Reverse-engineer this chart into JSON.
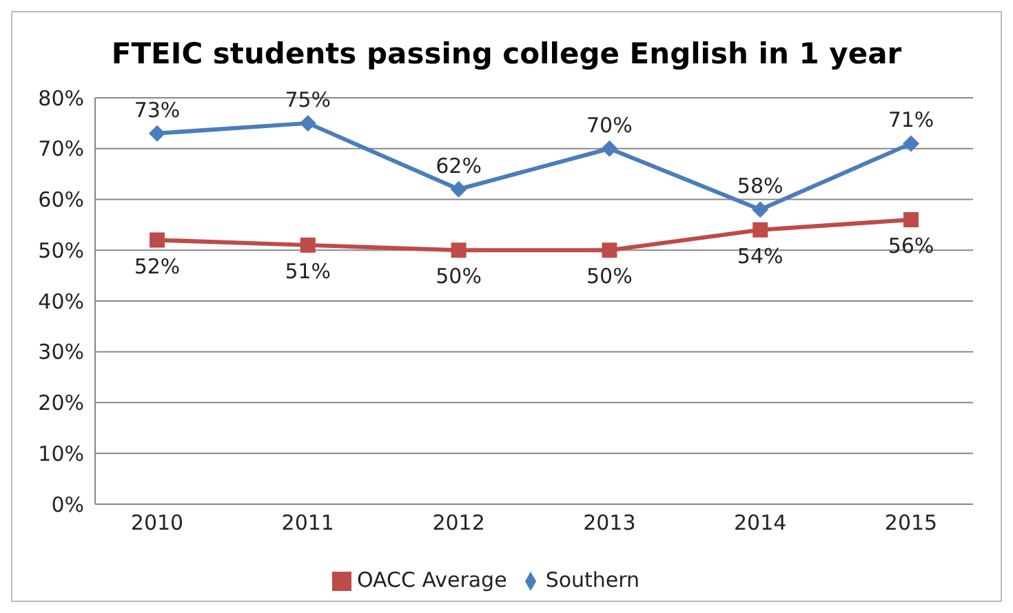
{
  "chart_data": {
    "type": "line",
    "title": "FTEIC students passing college English in 1 year",
    "categories": [
      "2010",
      "2011",
      "2012",
      "2013",
      "2014",
      "2015"
    ],
    "series": [
      {
        "name": "Southern",
        "color": "#4a7ebb",
        "marker": "diamond",
        "values": [
          73,
          75,
          62,
          70,
          58,
          71
        ],
        "value_labels": [
          "73%",
          "75%",
          "62%",
          "70%",
          "58%",
          "71%"
        ]
      },
      {
        "name": "OACC Average",
        "color": "#be4b48",
        "marker": "square",
        "values": [
          52,
          51,
          50,
          50,
          54,
          56
        ],
        "value_labels": [
          "52%",
          "51%",
          "50%",
          "50%",
          "54%",
          "56%"
        ]
      }
    ],
    "ylim": [
      0,
      80
    ],
    "yticks": [
      {
        "value": 0,
        "label": "0%"
      },
      {
        "value": 10,
        "label": "10%"
      },
      {
        "value": 20,
        "label": "20%"
      },
      {
        "value": 30,
        "label": "30%"
      },
      {
        "value": 40,
        "label": "40%"
      },
      {
        "value": 50,
        "label": "50%"
      },
      {
        "value": 60,
        "label": "60%"
      },
      {
        "value": 70,
        "label": "70%"
      },
      {
        "value": 80,
        "label": "80%"
      }
    ],
    "grid": "y",
    "legend": "bottom"
  }
}
